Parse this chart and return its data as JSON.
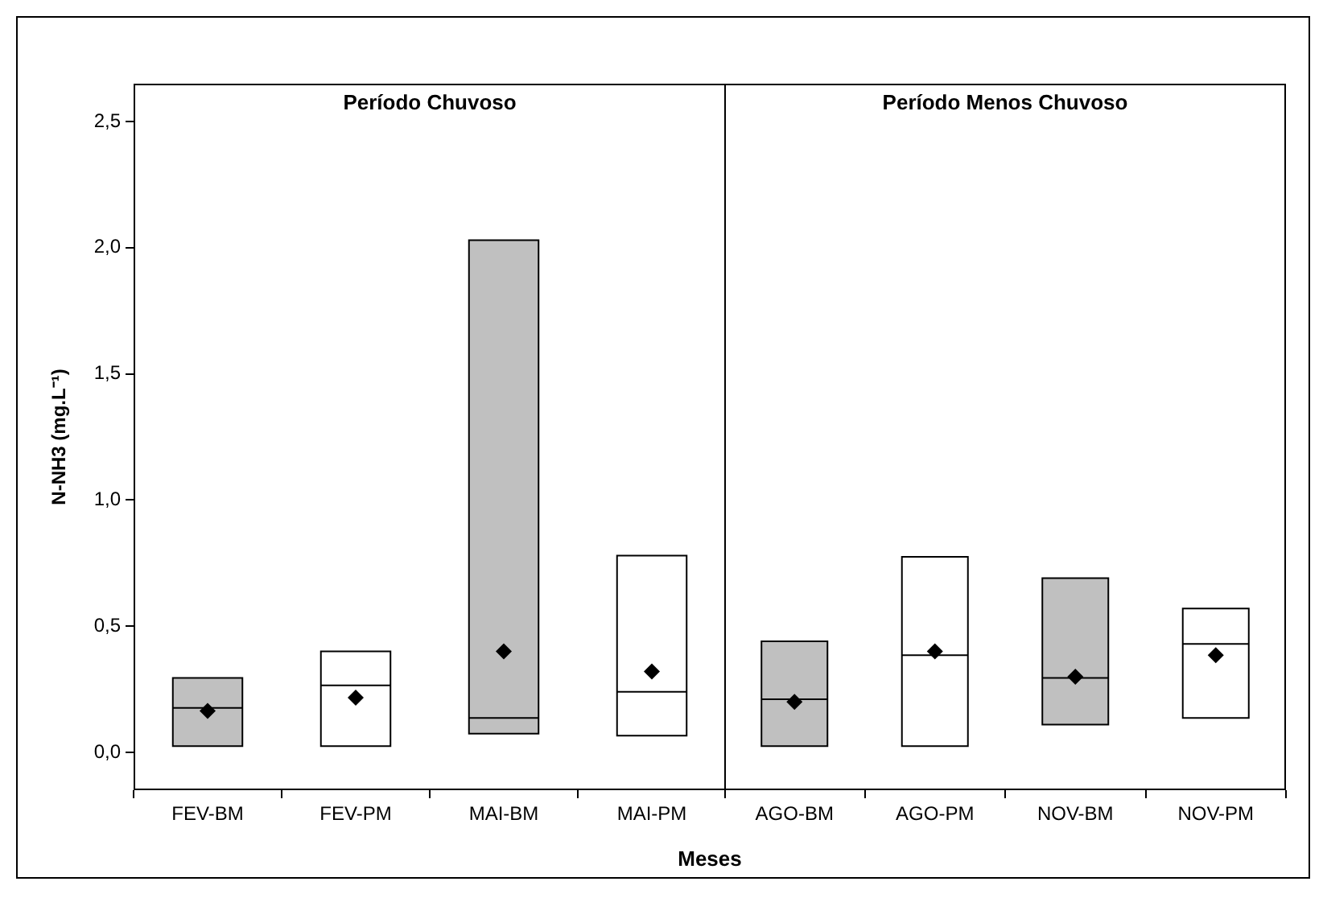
{
  "chart_data": [
    {
      "type": "box",
      "title": "Período Chuvoso",
      "ylabel": "N-NH3 (mg.L⁻¹)",
      "categories": [
        "FEV-BM",
        "FEV-PM",
        "MAI-BM",
        "MAI-PM"
      ],
      "boxes": [
        {
          "q1": 0.025,
          "median": 0.176,
          "q3": 0.295,
          "mean": 0.164
        },
        {
          "q1": 0.025,
          "median": 0.265,
          "q3": 0.4,
          "mean": 0.217
        },
        {
          "q1": 0.074,
          "median": 0.136,
          "q3": 2.03,
          "mean": 0.4
        },
        {
          "q1": 0.066,
          "median": 0.24,
          "q3": 0.78,
          "mean": 0.32
        }
      ],
      "colors": [
        "#c0c0c0",
        "#ffffff",
        "#c0c0c0",
        "#ffffff"
      ],
      "ylim": [
        -0.15,
        2.65
      ],
      "yticks": [
        {
          "value": 0,
          "label": "0,0"
        },
        {
          "value": 0.5,
          "label": "0,5"
        },
        {
          "value": 1,
          "label": "1,0"
        },
        {
          "value": 1.5,
          "label": "1,5"
        },
        {
          "value": 2,
          "label": "2,0"
        },
        {
          "value": 2.5,
          "label": "2,5"
        }
      ],
      "grid": false
    },
    {
      "type": "box",
      "title": "Período Menos Chuvoso",
      "xlabel": "Meses",
      "categories": [
        "AGO-BM",
        "AGO-PM",
        "NOV-BM",
        "NOV-PM"
      ],
      "boxes": [
        {
          "q1": 0.025,
          "median": 0.21,
          "q3": 0.44,
          "mean": 0.2
        },
        {
          "q1": 0.025,
          "median": 0.385,
          "q3": 0.775,
          "mean": 0.4
        },
        {
          "q1": 0.11,
          "median": 0.295,
          "q3": 0.69,
          "mean": 0.3
        },
        {
          "q1": 0.136,
          "median": 0.43,
          "q3": 0.57,
          "mean": 0.385
        }
      ],
      "colors": [
        "#c0c0c0",
        "#ffffff",
        "#c0c0c0",
        "#ffffff"
      ],
      "ylim": [
        -0.15,
        2.65
      ],
      "tick_labels": "x",
      "grid": false
    }
  ]
}
